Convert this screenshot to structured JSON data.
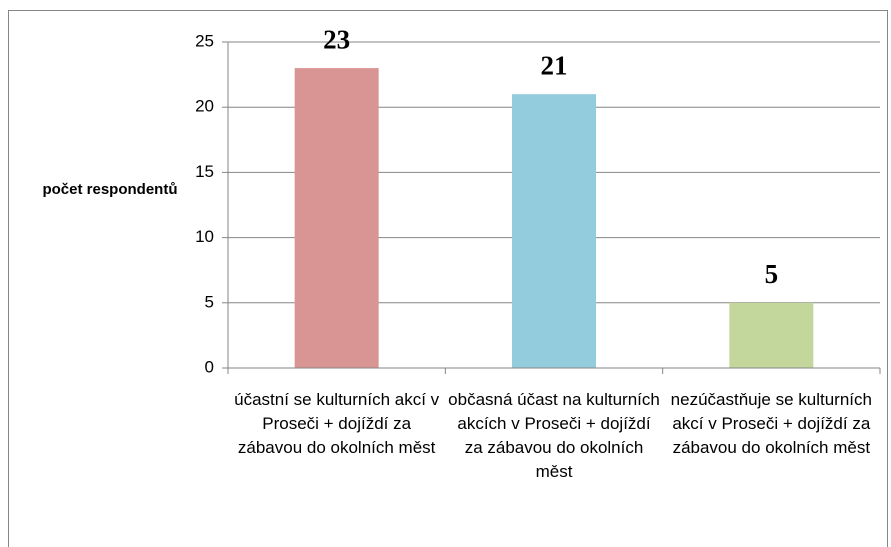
{
  "chart_data": {
    "type": "bar",
    "y_label": "počet respondentů",
    "categories": [
      "účastní se kulturních akcí v Proseči + dojíždí za zábavou do okolních měst",
      "občasná účast na kulturních akcích v Proseči + dojíždí za zábavou do okolních měst",
      "nezúčastňuje se kulturních akcí v Proseči + dojíždí za zábavou do okolních měst"
    ],
    "values": [
      23,
      21,
      5
    ],
    "colors": [
      "#d99594",
      "#93cddd",
      "#c3d69b"
    ],
    "ylim": [
      0,
      25
    ],
    "yticks": [
      0,
      5,
      10,
      15,
      20,
      25
    ],
    "grid": true
  }
}
